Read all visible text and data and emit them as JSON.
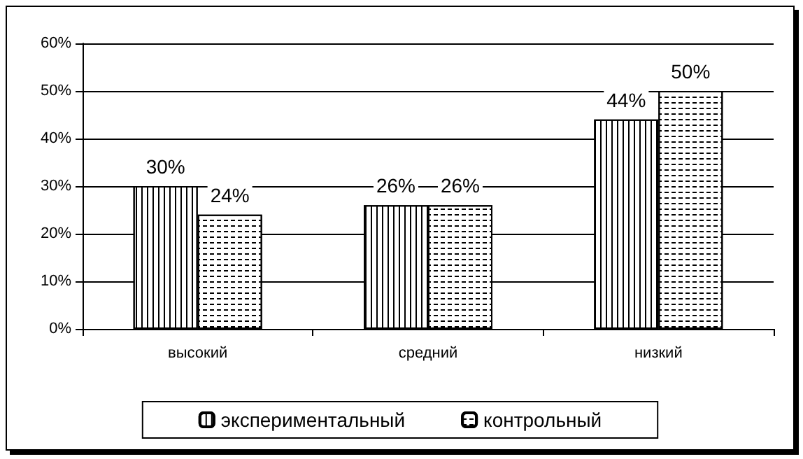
{
  "chart_data": {
    "type": "bar",
    "categories": [
      "высокий",
      "средний",
      "низкий"
    ],
    "series": [
      {
        "name": "экспериментальный",
        "color": "#ffffff",
        "values": [
          30,
          26,
          44
        ],
        "value_labels": [
          "30%",
          "26%",
          "44%"
        ]
      },
      {
        "name": "контрольный",
        "color": "#ffffff",
        "values": [
          24,
          26,
          50
        ],
        "value_labels": [
          "24%",
          "26%",
          "50%"
        ]
      }
    ],
    "ylim": [
      0,
      60
    ],
    "yticks": [
      {
        "value": 0,
        "label": "0%"
      },
      {
        "value": 10,
        "label": "10%"
      },
      {
        "value": 20,
        "label": "20%"
      },
      {
        "value": 30,
        "label": "30%"
      },
      {
        "value": 40,
        "label": "40%"
      },
      {
        "value": 50,
        "label": "50%"
      },
      {
        "value": 60,
        "label": "60%"
      }
    ],
    "grid": "y",
    "legend": "bottom"
  }
}
